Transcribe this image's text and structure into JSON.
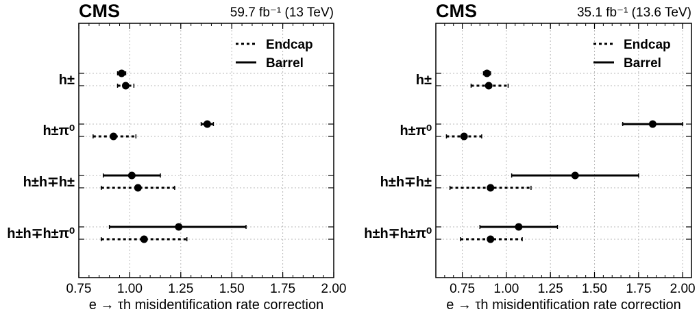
{
  "chart_data": [
    {
      "type": "scatter",
      "experiment": "CMS",
      "lumi_label": "59.7 fb⁻¹ (13 TeV)",
      "xlabel": "e → τh misidentification rate correction",
      "xlim": [
        0.75,
        2.0
      ],
      "xticks": [
        "0.75",
        "1.00",
        "1.25",
        "1.50",
        "1.75",
        "2.00"
      ],
      "grid": true,
      "legend_position": "top-right",
      "categories": [
        "h±",
        "h±π⁰",
        "h±h∓h±",
        "h±h∓h±π⁰"
      ],
      "series": [
        {
          "name": "Barrel",
          "style": "solid",
          "values": [
            0.96,
            1.38,
            1.01,
            1.24
          ],
          "err_low": [
            0.02,
            0.03,
            0.14,
            0.34
          ],
          "err_high": [
            0.02,
            0.03,
            0.14,
            0.33
          ]
        },
        {
          "name": "Endcap",
          "style": "dotted",
          "values": [
            0.98,
            0.92,
            1.04,
            1.07
          ],
          "err_low": [
            0.04,
            0.1,
            0.18,
            0.21
          ],
          "err_high": [
            0.04,
            0.11,
            0.18,
            0.21
          ]
        }
      ]
    },
    {
      "type": "scatter",
      "experiment": "CMS",
      "lumi_label": "35.1 fb⁻¹ (13.6 TeV)",
      "xlabel": "e → τh misidentification rate correction",
      "xlim": [
        0.6,
        2.05
      ],
      "xticks": [
        "0.75",
        "1.00",
        "1.25",
        "1.50",
        "1.75",
        "2.00"
      ],
      "grid": true,
      "legend_position": "top-right",
      "categories": [
        "h±",
        "h±π⁰",
        "h±h∓h±",
        "h±h∓h±π⁰"
      ],
      "series": [
        {
          "name": "Barrel",
          "style": "solid",
          "values": [
            0.89,
            1.83,
            1.39,
            1.07
          ],
          "err_low": [
            0.02,
            0.17,
            0.36,
            0.22
          ],
          "err_high": [
            0.02,
            0.17,
            0.36,
            0.22
          ]
        },
        {
          "name": "Endcap",
          "style": "dotted",
          "values": [
            0.9,
            0.76,
            0.91,
            0.91
          ],
          "err_low": [
            0.1,
            0.1,
            0.23,
            0.17
          ],
          "err_high": [
            0.11,
            0.1,
            0.23,
            0.18
          ]
        }
      ]
    }
  ]
}
